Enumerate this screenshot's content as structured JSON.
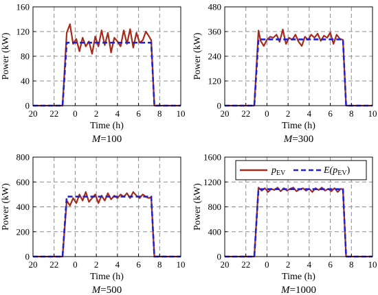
{
  "chart_data": [
    {
      "type": "line",
      "ylabel": "Power (kW)",
      "xlabel": "Time (h)",
      "subtitle_var": "M",
      "subtitle_val": "=100",
      "x_ticks": [
        20,
        22,
        0,
        2,
        4,
        6,
        8,
        10
      ],
      "y_ticks": [
        0,
        40,
        80,
        120,
        160
      ],
      "ylim": [
        0,
        160
      ],
      "xlim": [
        20,
        34
      ],
      "grid": true,
      "series": [
        {
          "key": "p_ev",
          "color": "#a52a1a",
          "style": "solid",
          "x": [
            20.0,
            22.8,
            23.2,
            23.5,
            23.8,
            24.1,
            24.4,
            24.7,
            25.0,
            25.3,
            25.6,
            25.9,
            26.2,
            26.5,
            26.8,
            27.1,
            27.4,
            27.7,
            28.0,
            28.3,
            28.6,
            28.9,
            29.2,
            29.5,
            29.8,
            30.1,
            30.4,
            30.7,
            31.0,
            31.2,
            31.5,
            32,
            34
          ],
          "y": [
            0,
            0,
            118,
            132,
            100,
            108,
            88,
            110,
            96,
            104,
            84,
            112,
            96,
            122,
            98,
            118,
            86,
            110,
            104,
            96,
            122,
            100,
            124,
            94,
            118,
            102,
            106,
            120,
            112,
            106,
            0,
            0,
            0
          ]
        },
        {
          "key": "e_p_ev",
          "color": "#2020d0",
          "style": "dashed",
          "x": [
            20,
            22.8,
            23.2,
            31.2,
            31.5,
            34
          ],
          "y": [
            0,
            0,
            102,
            102,
            0,
            0
          ]
        }
      ]
    },
    {
      "type": "line",
      "ylabel": "Power (kW)",
      "xlabel": "Time (h)",
      "subtitle_var": "M",
      "subtitle_val": "=300",
      "x_ticks": [
        20,
        22,
        0,
        2,
        4,
        6,
        8,
        10
      ],
      "y_ticks": [
        0,
        120,
        240,
        360,
        480
      ],
      "ylim": [
        0,
        480
      ],
      "xlim": [
        20,
        34
      ],
      "grid": true,
      "series": [
        {
          "key": "p_ev",
          "color": "#a52a1a",
          "style": "solid",
          "x": [
            20.0,
            22.8,
            23.2,
            23.4,
            23.7,
            24.0,
            24.3,
            24.6,
            24.9,
            25.2,
            25.5,
            25.8,
            26.1,
            26.4,
            26.7,
            27.0,
            27.3,
            27.6,
            27.9,
            28.2,
            28.5,
            28.8,
            29.1,
            29.4,
            29.7,
            30.0,
            30.3,
            30.6,
            30.9,
            31.2,
            31.5,
            32,
            34
          ],
          "y": [
            0,
            0,
            365,
            315,
            290,
            320,
            335,
            330,
            345,
            310,
            370,
            300,
            330,
            320,
            345,
            310,
            290,
            335,
            320,
            345,
            330,
            350,
            315,
            340,
            330,
            355,
            300,
            345,
            325,
            320,
            0,
            0,
            0
          ]
        },
        {
          "key": "e_p_ev",
          "color": "#2020d0",
          "style": "dashed",
          "x": [
            20,
            22.8,
            23.2,
            31.2,
            31.5,
            34
          ],
          "y": [
            0,
            0,
            322,
            322,
            0,
            0
          ]
        }
      ]
    },
    {
      "type": "line",
      "ylabel": "Power (kW)",
      "xlabel": "Time (h)",
      "subtitle_var": "M",
      "subtitle_val": "=500",
      "x_ticks": [
        20,
        22,
        0,
        2,
        4,
        6,
        8,
        10
      ],
      "y_ticks": [
        0,
        200,
        400,
        600,
        800
      ],
      "ylim": [
        0,
        800
      ],
      "xlim": [
        20,
        34
      ],
      "grid": true,
      "series": [
        {
          "key": "p_ev",
          "color": "#a52a1a",
          "style": "solid",
          "x": [
            20.0,
            22.8,
            23.2,
            23.5,
            23.8,
            24.1,
            24.4,
            24.7,
            25.0,
            25.3,
            25.6,
            25.9,
            26.2,
            26.5,
            26.8,
            27.1,
            27.4,
            27.7,
            28.0,
            28.3,
            28.6,
            28.9,
            29.2,
            29.5,
            29.8,
            30.1,
            30.4,
            30.7,
            31.0,
            31.2,
            31.5,
            32,
            34
          ],
          "y": [
            0,
            0,
            450,
            410,
            470,
            430,
            500,
            450,
            520,
            440,
            470,
            500,
            430,
            490,
            450,
            510,
            460,
            490,
            470,
            500,
            480,
            510,
            470,
            520,
            490,
            470,
            500,
            480,
            470,
            480,
            0,
            0,
            0
          ]
        },
        {
          "key": "e_p_ev",
          "color": "#2020d0",
          "style": "dashed",
          "x": [
            20,
            22.8,
            23.2,
            31.2,
            31.5,
            34
          ],
          "y": [
            0,
            0,
            482,
            482,
            0,
            0
          ]
        }
      ]
    },
    {
      "type": "line",
      "ylabel": "Power (kW)",
      "xlabel": "Time (h)",
      "subtitle_var": "M",
      "subtitle_val": "=1000",
      "x_ticks": [
        20,
        22,
        0,
        2,
        4,
        6,
        8,
        10
      ],
      "y_ticks": [
        0,
        400,
        800,
        1200,
        1600
      ],
      "ylim": [
        0,
        1600
      ],
      "xlim": [
        20,
        34
      ],
      "grid": true,
      "legend_position": "top",
      "series": [
        {
          "key": "p_ev",
          "color": "#a52a1a",
          "style": "solid",
          "x": [
            20.0,
            22.8,
            23.2,
            23.5,
            23.8,
            24.1,
            24.4,
            24.7,
            25.0,
            25.3,
            25.6,
            25.9,
            26.2,
            26.5,
            26.8,
            27.1,
            27.4,
            27.7,
            28.0,
            28.3,
            28.6,
            28.9,
            29.2,
            29.5,
            29.8,
            30.1,
            30.4,
            30.7,
            31.0,
            31.2,
            31.5,
            32,
            34
          ],
          "y": [
            0,
            0,
            1110,
            1060,
            1100,
            1040,
            1090,
            1070,
            1110,
            1050,
            1100,
            1060,
            1090,
            1110,
            1050,
            1080,
            1100,
            1060,
            1090,
            1040,
            1100,
            1070,
            1110,
            1060,
            1090,
            1050,
            1100,
            1040,
            1090,
            1080,
            0,
            0,
            0
          ]
        },
        {
          "key": "e_p_ev",
          "color": "#2020d0",
          "style": "dashed",
          "x": [
            20,
            22.8,
            23.2,
            31.2,
            31.5,
            34
          ],
          "y": [
            0,
            0,
            1085,
            1085,
            0,
            0
          ]
        }
      ]
    }
  ],
  "legend": {
    "p_ev_main": "p",
    "p_ev_sub": "EV",
    "e_prefix": "E(",
    "e_main": "p",
    "e_sub": "EV",
    "e_suffix": ")"
  }
}
